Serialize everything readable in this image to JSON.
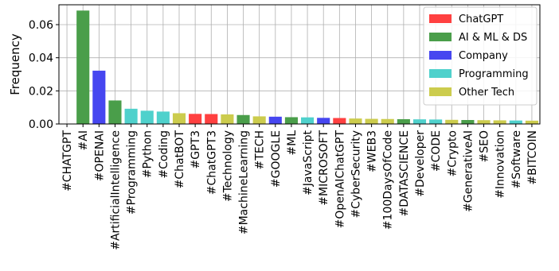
{
  "chart_data": {
    "type": "bar",
    "title": "",
    "xlabel": "",
    "ylabel": "Frequency",
    "ylim": [
      0,
      0.072
    ],
    "yticks": [
      "0.00",
      "0.02",
      "0.04",
      "0.06"
    ],
    "grid": true,
    "legend_position": "top-right",
    "legend": [
      {
        "name": "ChatGPT",
        "color": "#ff4040"
      },
      {
        "name": "AI & ML & DS",
        "color": "#4a9e4a"
      },
      {
        "name": "Company",
        "color": "#4646f0"
      },
      {
        "name": "Programming",
        "color": "#4fd1cc"
      },
      {
        "name": "Other Tech",
        "color": "#cccc4d"
      }
    ],
    "categories": [
      "#CHATGPT",
      "#AI",
      "#OPENAI",
      "#ArtificialIntelligence",
      "#Programming",
      "#Python",
      "#Coding",
      "#ChatBOT",
      "#GPT3",
      "#ChatGPT3",
      "#Technology",
      "#MachineLearning",
      "#TECH",
      "#GOOGLE",
      "#ML",
      "#JavaScript",
      "#MICROSOFT",
      "#OpenAIChatGPT",
      "#CyberSecurity",
      "#WEB3",
      "#100DaysOfCode",
      "#DATASCIENCE",
      "#Developer",
      "#CODE",
      "#Crypto",
      "#GenerativeAI",
      "#SEO",
      "#Innovation",
      "#Software",
      "#BITCOIN"
    ],
    "values": [
      0.0,
      0.0685,
      0.0322,
      0.0142,
      0.0092,
      0.008,
      0.0075,
      0.0065,
      0.0061,
      0.006,
      0.0058,
      0.0054,
      0.0046,
      0.0044,
      0.0041,
      0.004,
      0.0037,
      0.0036,
      0.0033,
      0.0031,
      0.003,
      0.0029,
      0.0028,
      0.0027,
      0.0025,
      0.0024,
      0.0023,
      0.0022,
      0.0021,
      0.002
    ],
    "groups": [
      "ChatGPT",
      "AI & ML & DS",
      "Company",
      "AI & ML & DS",
      "Programming",
      "Programming",
      "Programming",
      "Other Tech",
      "ChatGPT",
      "ChatGPT",
      "Other Tech",
      "AI & ML & DS",
      "Other Tech",
      "Company",
      "AI & ML & DS",
      "Programming",
      "Company",
      "ChatGPT",
      "Other Tech",
      "Other Tech",
      "Other Tech",
      "AI & ML & DS",
      "Programming",
      "Programming",
      "Other Tech",
      "AI & ML & DS",
      "Other Tech",
      "Other Tech",
      "Programming",
      "Other Tech"
    ]
  }
}
